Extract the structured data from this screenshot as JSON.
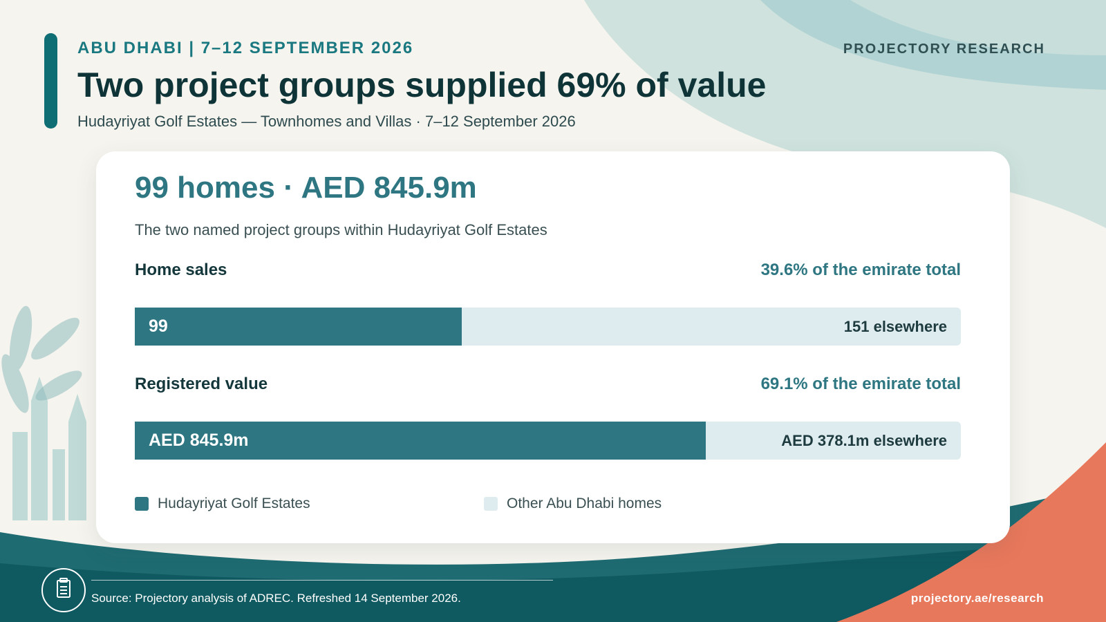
{
  "kicker": "ABU DHABI | 7–12 SEPTEMBER 2026",
  "brand": "PROJECTORY RESEARCH",
  "headline": "Two project groups supplied 69% of value",
  "subtitle": "Hudayriyat Golf Estates — Townhomes and Villas · 7–12 September 2026",
  "card": {
    "title": "99 homes · AED 845.9m",
    "description": "The two named project groups within Hudayriyat Golf Estates"
  },
  "chart_data": {
    "type": "bar",
    "orientation": "horizontal-stacked-share",
    "title": "99 homes · AED 845.9m",
    "categories": [
      "Home sales",
      "Registered value"
    ],
    "series": [
      {
        "name": "Hudayriyat Golf Estates",
        "color": "#2e7681",
        "shares": [
          0.396,
          0.691
        ],
        "labels": [
          "99",
          "AED 845.9m"
        ]
      },
      {
        "name": "Other Abu Dhabi homes",
        "color": "#dfecef",
        "labels": [
          "151 elsewhere",
          "AED 378.1m elsewhere"
        ]
      }
    ],
    "share_labels": [
      "39.6% of the emirate total",
      "69.1% of the emirate total"
    ],
    "legend": "bottom-left"
  },
  "footer": {
    "source": "Source: Projectory analysis of ADREC. Refreshed 14 September 2026.",
    "url": "projectory.ae/research",
    "source_icon": "document-icon"
  },
  "colors": {
    "primary": "#2e7681",
    "dark_teal": "#0f6e74",
    "light_track": "#dfecef",
    "coral": "#e8785c",
    "background": "#f6f4ee"
  }
}
